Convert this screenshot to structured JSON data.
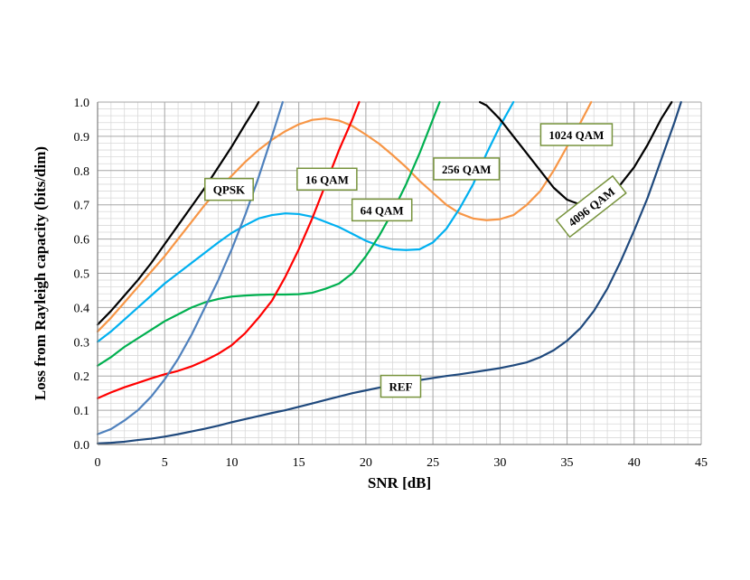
{
  "chart_data": {
    "type": "line",
    "title": "",
    "xlabel": "SNR [dB]",
    "ylabel": "Loss from Rayleigh capacity (bits/dim)",
    "xlim": [
      0,
      45
    ],
    "ylim": [
      0,
      1.0
    ],
    "x_ticks": [
      "0",
      "5",
      "10",
      "15",
      "20",
      "25",
      "30",
      "35",
      "40",
      "45"
    ],
    "y_ticks": [
      "0.0",
      "0.1",
      "0.2",
      "0.3",
      "0.4",
      "0.5",
      "0.6",
      "0.7",
      "0.8",
      "0.9",
      "1.0"
    ],
    "grid": true,
    "series": [
      {
        "name": "QPSK",
        "color": "#000000",
        "points": [
          [
            0,
            0.35
          ],
          [
            1,
            0.39
          ],
          [
            2,
            0.435
          ],
          [
            3,
            0.48
          ],
          [
            4,
            0.53
          ],
          [
            5,
            0.585
          ],
          [
            6,
            0.64
          ],
          [
            7,
            0.695
          ],
          [
            8,
            0.75
          ],
          [
            9,
            0.81
          ],
          [
            10,
            0.87
          ],
          [
            11,
            0.935
          ],
          [
            11.8,
            0.985
          ],
          [
            12,
            1.0
          ]
        ]
      },
      {
        "name": "16 QAM",
        "color": "#F79646",
        "points": [
          [
            0,
            0.33
          ],
          [
            1,
            0.37
          ],
          [
            2,
            0.415
          ],
          [
            3,
            0.46
          ],
          [
            4,
            0.505
          ],
          [
            5,
            0.55
          ],
          [
            6,
            0.6
          ],
          [
            7,
            0.65
          ],
          [
            8,
            0.7
          ],
          [
            9,
            0.745
          ],
          [
            10,
            0.785
          ],
          [
            11,
            0.825
          ],
          [
            12,
            0.86
          ],
          [
            13,
            0.89
          ],
          [
            14,
            0.915
          ],
          [
            15,
            0.935
          ],
          [
            16,
            0.948
          ],
          [
            17,
            0.952
          ],
          [
            18,
            0.946
          ],
          [
            19,
            0.93
          ],
          [
            20,
            0.905
          ],
          [
            21,
            0.878
          ],
          [
            22,
            0.845
          ],
          [
            23,
            0.81
          ],
          [
            24,
            0.77
          ],
          [
            25,
            0.735
          ],
          [
            26,
            0.7
          ],
          [
            27,
            0.675
          ],
          [
            28,
            0.66
          ],
          [
            29,
            0.655
          ],
          [
            30,
            0.658
          ],
          [
            31,
            0.67
          ],
          [
            32,
            0.7
          ],
          [
            33,
            0.74
          ],
          [
            34,
            0.8
          ],
          [
            35,
            0.87
          ],
          [
            36,
            0.94
          ],
          [
            36.8,
            1.0
          ]
        ]
      },
      {
        "name": "64 QAM",
        "color": "#00B0F0",
        "points": [
          [
            0,
            0.3
          ],
          [
            1,
            0.33
          ],
          [
            2,
            0.365
          ],
          [
            3,
            0.4
          ],
          [
            4,
            0.435
          ],
          [
            5,
            0.47
          ],
          [
            6,
            0.5
          ],
          [
            7,
            0.53
          ],
          [
            8,
            0.56
          ],
          [
            9,
            0.59
          ],
          [
            10,
            0.618
          ],
          [
            11,
            0.64
          ],
          [
            12,
            0.66
          ],
          [
            13,
            0.67
          ],
          [
            14,
            0.675
          ],
          [
            15,
            0.673
          ],
          [
            16,
            0.665
          ],
          [
            17,
            0.65
          ],
          [
            18,
            0.635
          ],
          [
            19,
            0.615
          ],
          [
            20,
            0.595
          ],
          [
            21,
            0.58
          ],
          [
            22,
            0.57
          ],
          [
            23,
            0.568
          ],
          [
            24,
            0.57
          ],
          [
            25,
            0.59
          ],
          [
            26,
            0.63
          ],
          [
            27,
            0.69
          ],
          [
            28,
            0.76
          ],
          [
            29,
            0.85
          ],
          [
            30,
            0.93
          ],
          [
            31,
            1.0
          ]
        ]
      },
      {
        "name": "256 QAM",
        "color": "#00B050",
        "points": [
          [
            0,
            0.23
          ],
          [
            1,
            0.255
          ],
          [
            2,
            0.285
          ],
          [
            3,
            0.31
          ],
          [
            4,
            0.335
          ],
          [
            5,
            0.36
          ],
          [
            6,
            0.38
          ],
          [
            7,
            0.4
          ],
          [
            8,
            0.415
          ],
          [
            9,
            0.425
          ],
          [
            10,
            0.432
          ],
          [
            11,
            0.435
          ],
          [
            12,
            0.437
          ],
          [
            13,
            0.438
          ],
          [
            14,
            0.438
          ],
          [
            15,
            0.439
          ],
          [
            16,
            0.443
          ],
          [
            17,
            0.455
          ],
          [
            18,
            0.47
          ],
          [
            19,
            0.5
          ],
          [
            20,
            0.55
          ],
          [
            21,
            0.61
          ],
          [
            22,
            0.68
          ],
          [
            23,
            0.76
          ],
          [
            24,
            0.85
          ],
          [
            25,
            0.95
          ],
          [
            25.5,
            1.0
          ]
        ]
      },
      {
        "name": "1024 QAM",
        "color": "#FF0000",
        "points": [
          [
            0,
            0.135
          ],
          [
            1,
            0.152
          ],
          [
            2,
            0.167
          ],
          [
            3,
            0.18
          ],
          [
            4,
            0.193
          ],
          [
            5,
            0.205
          ],
          [
            6,
            0.215
          ],
          [
            7,
            0.228
          ],
          [
            8,
            0.245
          ],
          [
            9,
            0.265
          ],
          [
            10,
            0.29
          ],
          [
            11,
            0.325
          ],
          [
            12,
            0.37
          ],
          [
            13,
            0.42
          ],
          [
            14,
            0.49
          ],
          [
            15,
            0.57
          ],
          [
            16,
            0.66
          ],
          [
            17,
            0.76
          ],
          [
            18,
            0.86
          ],
          [
            19,
            0.95
          ],
          [
            19.5,
            1.0
          ]
        ]
      },
      {
        "name": "4096 QAM",
        "color": "#4F81BD",
        "points": [
          [
            0,
            0.03
          ],
          [
            1,
            0.045
          ],
          [
            2,
            0.07
          ],
          [
            3,
            0.1
          ],
          [
            4,
            0.14
          ],
          [
            5,
            0.19
          ],
          [
            6,
            0.25
          ],
          [
            7,
            0.32
          ],
          [
            8,
            0.4
          ],
          [
            9,
            0.48
          ],
          [
            10,
            0.57
          ],
          [
            11,
            0.67
          ],
          [
            12,
            0.78
          ],
          [
            13,
            0.9
          ],
          [
            13.8,
            1.0
          ]
        ]
      },
      {
        "name": "",
        "color": "#000000",
        "points": [
          [
            28.5,
            1.0
          ],
          [
            29,
            0.99
          ],
          [
            30,
            0.95
          ],
          [
            31,
            0.9
          ],
          [
            32,
            0.85
          ],
          [
            33,
            0.8
          ],
          [
            34,
            0.75
          ],
          [
            35,
            0.715
          ],
          [
            36,
            0.7
          ],
          [
            37,
            0.7
          ],
          [
            38,
            0.72
          ],
          [
            39,
            0.76
          ],
          [
            40,
            0.81
          ],
          [
            41,
            0.875
          ],
          [
            42,
            0.95
          ],
          [
            42.8,
            1.0
          ]
        ]
      },
      {
        "name": "REF",
        "color": "#1F497D",
        "points": [
          [
            0,
            0.003
          ],
          [
            1,
            0.005
          ],
          [
            2,
            0.008
          ],
          [
            3,
            0.013
          ],
          [
            4,
            0.017
          ],
          [
            5,
            0.023
          ],
          [
            6,
            0.03
          ],
          [
            7,
            0.038
          ],
          [
            8,
            0.046
          ],
          [
            9,
            0.055
          ],
          [
            10,
            0.065
          ],
          [
            11,
            0.074
          ],
          [
            12,
            0.083
          ],
          [
            13,
            0.092
          ],
          [
            14,
            0.1
          ],
          [
            15,
            0.11
          ],
          [
            16,
            0.12
          ],
          [
            17,
            0.13
          ],
          [
            18,
            0.14
          ],
          [
            19,
            0.15
          ],
          [
            20,
            0.158
          ],
          [
            21,
            0.166
          ],
          [
            22,
            0.174
          ],
          [
            23,
            0.181
          ],
          [
            24,
            0.188
          ],
          [
            25,
            0.194
          ],
          [
            26,
            0.2
          ],
          [
            27,
            0.205
          ],
          [
            28,
            0.211
          ],
          [
            29,
            0.217
          ],
          [
            30,
            0.223
          ],
          [
            31,
            0.231
          ],
          [
            32,
            0.24
          ],
          [
            33,
            0.255
          ],
          [
            34,
            0.275
          ],
          [
            35,
            0.303
          ],
          [
            36,
            0.34
          ],
          [
            37,
            0.39
          ],
          [
            38,
            0.455
          ],
          [
            39,
            0.535
          ],
          [
            40,
            0.625
          ],
          [
            41,
            0.72
          ],
          [
            42,
            0.83
          ],
          [
            43,
            0.94
          ],
          [
            43.5,
            1.0
          ]
        ]
      }
    ],
    "annotations": [
      {
        "text": "QPSK",
        "x": 9.8,
        "y": 0.745,
        "rotate": 0
      },
      {
        "text": "16 QAM",
        "x": 17.1,
        "y": 0.775,
        "rotate": 0
      },
      {
        "text": "64 QAM",
        "x": 21.2,
        "y": 0.685,
        "rotate": 0
      },
      {
        "text": "256 QAM",
        "x": 27.5,
        "y": 0.805,
        "rotate": 0
      },
      {
        "text": "1024 QAM",
        "x": 35.7,
        "y": 0.905,
        "rotate": 0
      },
      {
        "text": "4096 QAM",
        "x": 36.8,
        "y": 0.695,
        "rotate": -38
      },
      {
        "text": "REF",
        "x": 22.6,
        "y": 0.17,
        "rotate": 0
      }
    ],
    "colors": {
      "label_border": "#77933C",
      "major_grid": "#A6A6A6",
      "minor_grid": "#D9D9D9"
    }
  }
}
